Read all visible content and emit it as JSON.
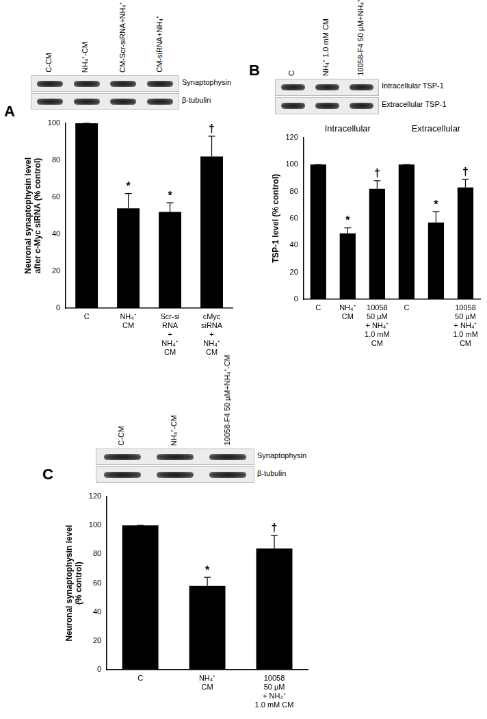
{
  "chart_data": [
    {
      "type": "bar",
      "title": "A",
      "categories": [
        "C",
        "NH₄⁺\nCM",
        "Scr-si\nRNA\n+\nNH₄⁺\nCM",
        "cMyc\nsiRNA\n+\nNH₄⁺\nCM"
      ],
      "values": [
        100,
        54,
        52,
        82
      ],
      "errors": [
        0,
        8,
        5,
        11
      ],
      "significance": [
        null,
        "*",
        "*",
        "†"
      ],
      "color": "#000000",
      "ylim": [
        0,
        100
      ],
      "yticks": [
        0,
        20,
        40,
        60,
        80,
        100
      ],
      "y_label": "Neuronal synaptophysin level\nafter c-Myc siRNA (% control)",
      "grid": false,
      "blot": {
        "lanes": [
          "C-CM",
          "NH₄⁺-CM",
          "CM-Scr-siRNA+NH₄⁺",
          "CM-siRNA+NH₄⁺"
        ],
        "rows": [
          "Synaptophysin",
          "β-tubulin"
        ]
      }
    },
    {
      "type": "bar",
      "title": "B",
      "categories": [
        "C",
        "NH₄⁺\nCM",
        "10058\n50 µM\n+ NH₄⁺\n1.0 mM\nCM",
        "C",
        null,
        "10058\n50 µM\n+ NH₄⁺\n1.0 mM\nCM"
      ],
      "values": [
        100,
        49,
        82,
        100,
        57,
        83
      ],
      "errors": [
        0,
        4,
        6,
        0,
        8,
        6
      ],
      "significance": [
        null,
        "*",
        "†",
        null,
        "*",
        "†"
      ],
      "group_labels": [
        "Intracellular",
        "Extracellular"
      ],
      "color": "#000000",
      "ylim": [
        0,
        120
      ],
      "yticks": [
        0,
        20,
        40,
        60,
        80,
        100,
        120
      ],
      "y_label": "TSP-1 level (% control)",
      "grid": false,
      "blot": {
        "lanes": [
          "C",
          "NH₄⁺ 1.0 mM CM",
          "10058-F4 50 µM+NH₄⁺"
        ],
        "rows": [
          "Intracellular TSP-1",
          "Extracellular TSP-1"
        ]
      }
    },
    {
      "type": "bar",
      "title": "C",
      "categories": [
        "C",
        "NH₄⁺\nCM",
        "10058\n50 µM\n+ NH₄⁺\n1.0 mM CM"
      ],
      "values": [
        100,
        58,
        84
      ],
      "errors": [
        0,
        6,
        9
      ],
      "significance": [
        null,
        "*",
        "†"
      ],
      "color": "#000000",
      "ylim": [
        0,
        120
      ],
      "yticks": [
        0,
        20,
        40,
        60,
        80,
        100,
        120
      ],
      "y_label": "Neuronal synaptophysin level\n(% control)",
      "grid": false,
      "blot": {
        "lanes": [
          "C-CM",
          "NH₄⁺-CM",
          "10058-F4 50 µM+NH₄⁺-CM"
        ],
        "rows": [
          "Synaptophysin",
          "β-tubulin"
        ]
      }
    }
  ]
}
